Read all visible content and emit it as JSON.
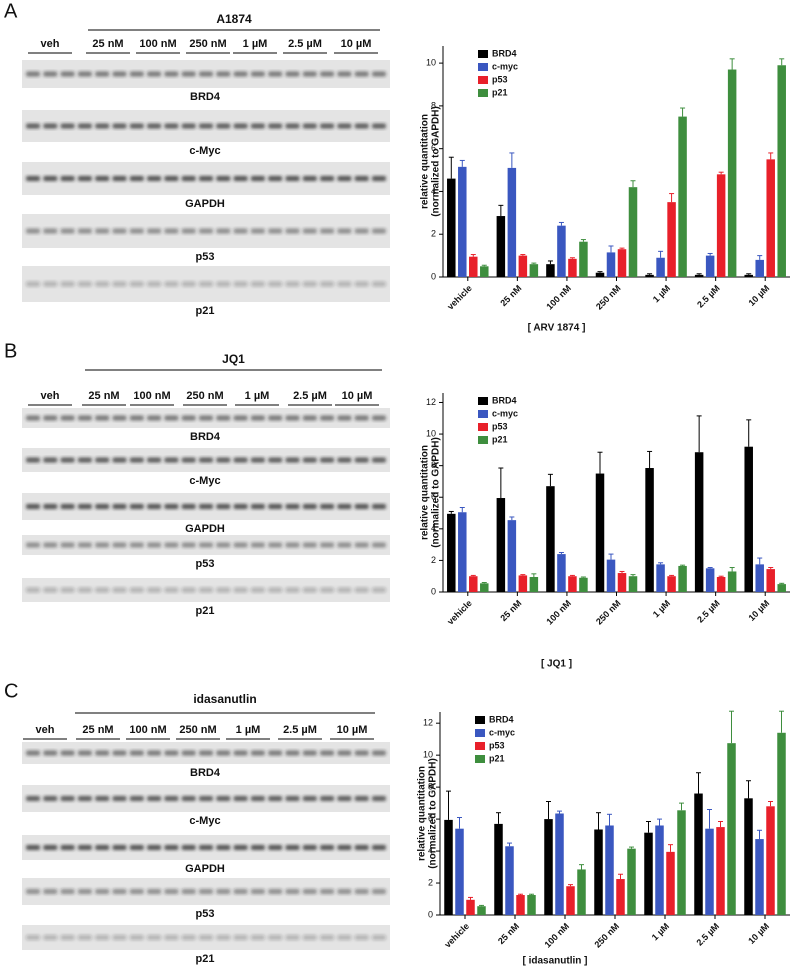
{
  "panels": [
    {
      "letter": "A",
      "title": "A1874",
      "groups": [
        "veh",
        "25 nM",
        "100 nM",
        "250 nM",
        "1 µM",
        "2.5 µM",
        "10 µM"
      ],
      "bands": [
        "BRD4",
        "c-Myc",
        "GAPDH",
        "p53",
        "p21"
      ]
    },
    {
      "letter": "B",
      "title": "JQ1",
      "groups": [
        "veh",
        "25 nM",
        "100 nM",
        "250 nM",
        "1 µM",
        "2.5 µM",
        "10 µM"
      ],
      "bands": [
        "BRD4",
        "c-Myc",
        "GAPDH",
        "p53",
        "p21"
      ]
    },
    {
      "letter": "C",
      "title": "idasanutlin",
      "groups": [
        "veh",
        "25 nM",
        "100 nM",
        "250 nM",
        "1 µM",
        "2.5 µM",
        "10 µM"
      ],
      "bands": [
        "BRD4",
        "c-Myc",
        "GAPDH",
        "p53",
        "p21"
      ]
    }
  ],
  "chart_data": [
    {
      "type": "bar",
      "xlabel": "[ ARV 1874 ]",
      "ylabel": [
        "relative quantitation",
        "(normalized to GAPDH)"
      ],
      "legend": "top-left",
      "categories": [
        "vehicle",
        "25 nM",
        "100 nM",
        "250 nM",
        "1 µM",
        "2.5 µM",
        "10 µM"
      ],
      "ylim": [
        0,
        10.8
      ],
      "yticks": [
        0,
        2,
        4,
        6,
        8,
        10
      ],
      "series": [
        {
          "name": "BRD4",
          "color": "#000000",
          "values": [
            4.6,
            2.85,
            0.6,
            0.2,
            0.1,
            0.1,
            0.1
          ],
          "errors": [
            1.0,
            0.5,
            0.15,
            0.05,
            0.05,
            0.05,
            0.05
          ]
        },
        {
          "name": "c-myc",
          "color": "#3a57c0",
          "values": [
            5.15,
            5.1,
            2.4,
            1.15,
            0.9,
            1.0,
            0.8
          ],
          "errors": [
            0.3,
            0.7,
            0.15,
            0.3,
            0.3,
            0.1,
            0.2
          ]
        },
        {
          "name": "p53",
          "color": "#e8202a",
          "values": [
            0.95,
            1.0,
            0.85,
            1.3,
            3.5,
            4.8,
            5.5
          ],
          "errors": [
            0.1,
            0.05,
            0.05,
            0.05,
            0.4,
            0.1,
            0.3
          ]
        },
        {
          "name": "p21",
          "color": "#3e8e3e",
          "values": [
            0.5,
            0.6,
            1.65,
            4.2,
            7.5,
            9.7,
            9.9
          ],
          "errors": [
            0.05,
            0.05,
            0.1,
            0.3,
            0.4,
            0.5,
            0.3
          ]
        }
      ]
    },
    {
      "type": "bar",
      "xlabel": "[  JQ1 ]",
      "ylabel": [
        "relative quantitation",
        "(normalized to GAPDH)"
      ],
      "legend": "top-left",
      "categories": [
        "vehicle",
        "25 nM",
        "100 nM",
        "250 nM",
        "1 µM",
        "2.5 µM",
        "10 µM"
      ],
      "ylim": [
        0,
        12.6
      ],
      "yticks": [
        0,
        2,
        4,
        6,
        8,
        10,
        12
      ],
      "series": [
        {
          "name": "BRD4",
          "color": "#000000",
          "values": [
            4.95,
            5.95,
            6.7,
            7.5,
            7.85,
            8.85,
            9.2
          ],
          "errors": [
            0.15,
            1.9,
            0.75,
            1.35,
            1.05,
            2.3,
            1.7
          ]
        },
        {
          "name": "c-myc",
          "color": "#3a57c0",
          "values": [
            5.05,
            4.55,
            2.4,
            2.05,
            1.75,
            1.5,
            1.75
          ],
          "errors": [
            0.3,
            0.2,
            0.1,
            0.35,
            0.1,
            0.05,
            0.4
          ]
        },
        {
          "name": "p53",
          "color": "#e8202a",
          "values": [
            1.0,
            1.05,
            1.0,
            1.2,
            1.0,
            0.95,
            1.45
          ],
          "errors": [
            0.05,
            0.05,
            0.05,
            0.1,
            0.05,
            0.05,
            0.1
          ]
        },
        {
          "name": "p21",
          "color": "#3e8e3e",
          "values": [
            0.55,
            0.95,
            0.9,
            1.0,
            1.65,
            1.3,
            0.5
          ],
          "errors": [
            0.05,
            0.2,
            0.05,
            0.1,
            0.05,
            0.25,
            0.05
          ]
        }
      ]
    },
    {
      "type": "bar",
      "xlabel": "[  idasanutlin ]",
      "ylabel": [
        "relative quantitation",
        "(normalized to GAPDH)"
      ],
      "legend": "top-left",
      "categories": [
        "vehicle",
        "25 nM",
        "100 nM",
        "250 nM",
        "1 µM",
        "2.5 µM",
        "10 µM"
      ],
      "ylim": [
        0,
        12.7
      ],
      "yticks": [
        0,
        2,
        4,
        6,
        8,
        10,
        12
      ],
      "series": [
        {
          "name": "BRD4",
          "color": "#000000",
          "values": [
            5.95,
            5.7,
            6.0,
            5.35,
            5.15,
            7.6,
            7.3
          ],
          "errors": [
            1.8,
            0.7,
            1.1,
            1.05,
            0.7,
            1.3,
            1.1
          ]
        },
        {
          "name": "c-myc",
          "color": "#3a57c0",
          "values": [
            5.4,
            4.3,
            6.35,
            5.6,
            5.6,
            5.4,
            4.75
          ],
          "errors": [
            0.7,
            0.2,
            0.15,
            0.7,
            0.4,
            1.2,
            0.55
          ]
        },
        {
          "name": "p53",
          "color": "#e8202a",
          "values": [
            0.95,
            1.25,
            1.8,
            2.25,
            3.95,
            5.5,
            6.8
          ],
          "errors": [
            0.15,
            0.05,
            0.1,
            0.3,
            0.45,
            0.35,
            0.3
          ]
        },
        {
          "name": "p21",
          "color": "#3e8e3e",
          "values": [
            0.55,
            1.25,
            2.85,
            4.15,
            6.55,
            10.75,
            11.4
          ],
          "errors": [
            0.05,
            0.05,
            0.3,
            0.1,
            0.45,
            2.0,
            1.35
          ]
        }
      ]
    }
  ]
}
